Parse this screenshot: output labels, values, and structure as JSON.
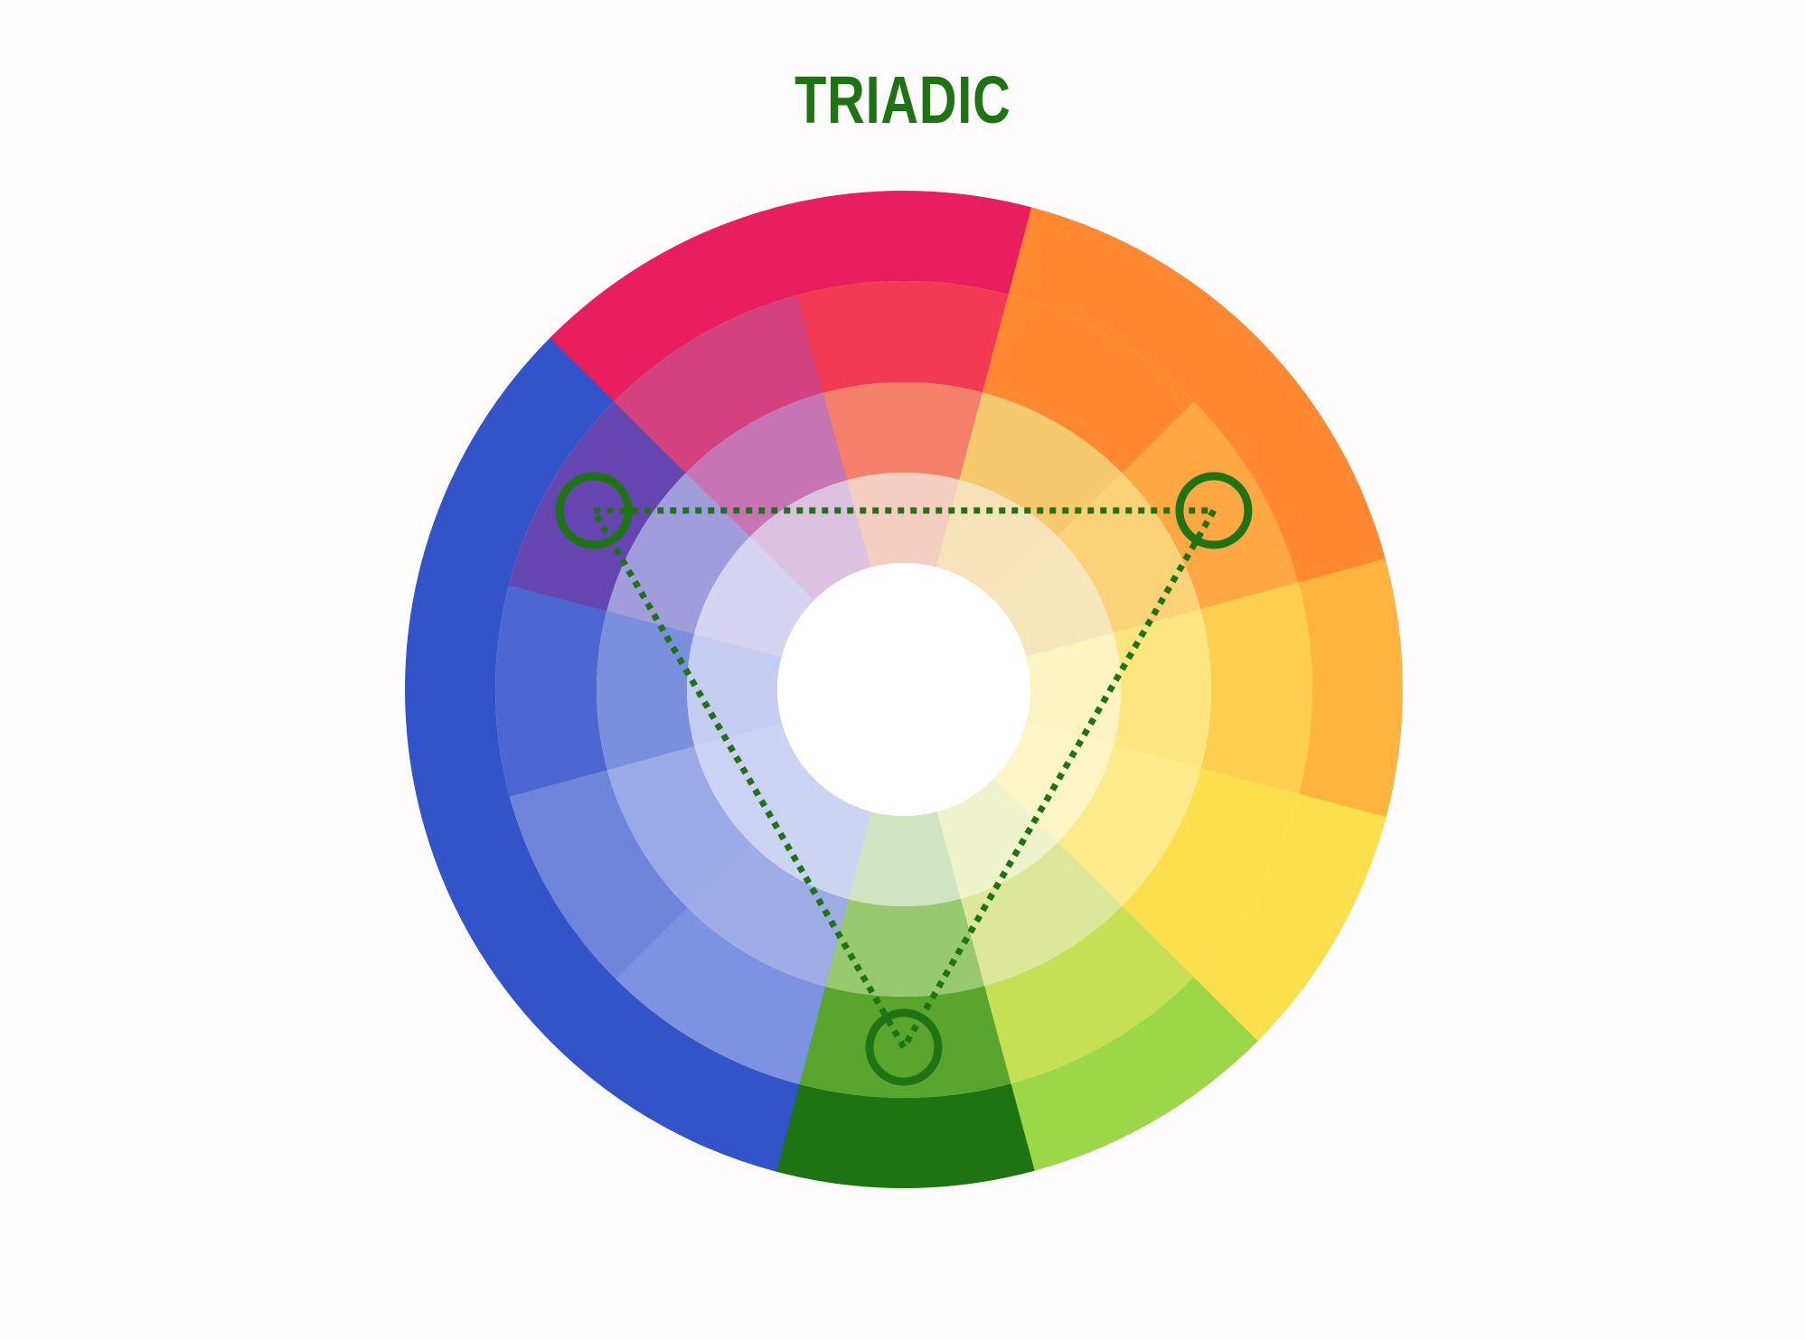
{
  "title": "TRIADIC",
  "colors": {
    "background": "#fefcfc",
    "accent": "#1e7412",
    "center": "#ffffff"
  },
  "wheel": {
    "segments": [
      {
        "name": "orange",
        "shades": [
          "#ff8830",
          "#ffa743",
          "#fbd277",
          "#f7e5bc"
        ]
      },
      {
        "name": "yellow-orange",
        "shades": [
          "#ffb43f",
          "#fdce4f",
          "#fde67f",
          "#fdf3c2"
        ]
      },
      {
        "name": "yellow",
        "shades": [
          "#fcdf4d",
          "#fcdf4d",
          "#fdea8a",
          "#fdf5c6"
        ]
      },
      {
        "name": "yellow-green",
        "shades": [
          "#9cd74a",
          "#c5e055",
          "#dce79a",
          "#eef3cc"
        ]
      },
      {
        "name": "green",
        "shades": [
          "#1e7412",
          "#5aa52e",
          "#98c971",
          "#cfe5c2"
        ]
      },
      {
        "name": "blue-green",
        "shades": [
          "#3353c8",
          "#7d92e0",
          "#9dacE4",
          "#ccd4f2"
        ]
      },
      {
        "name": "blue",
        "shades": [
          "#3353c8",
          "#6f85dc",
          "#9aaae6",
          "#cbd2f3"
        ]
      },
      {
        "name": "blue-violet",
        "shades": [
          "#3353c8",
          "#4c66d2",
          "#7b8fdf",
          "#c5ccf1"
        ]
      },
      {
        "name": "violet",
        "shades": [
          "#3353c8",
          "#6545b0",
          "#a19ddd",
          "#d4d3f1"
        ]
      },
      {
        "name": "red-violet",
        "shades": [
          "#e91e5e",
          "#d3427e",
          "#c774b4",
          "#dcc1e0"
        ]
      },
      {
        "name": "red",
        "shades": [
          "#e91e5e",
          "#f23a54",
          "#f4806a",
          "#f4cfc1"
        ]
      },
      {
        "name": "red-orange",
        "shades": [
          "#ff8830",
          "#ff8830",
          "#f7c96f",
          "#f7e3ba"
        ]
      }
    ],
    "selected": [
      "orange",
      "green",
      "violet"
    ]
  },
  "icons": {
    "markers": [
      "selection-ring-icon",
      "selection-ring-icon",
      "selection-ring-icon"
    ],
    "connector": "dotted-triangle-icon"
  }
}
